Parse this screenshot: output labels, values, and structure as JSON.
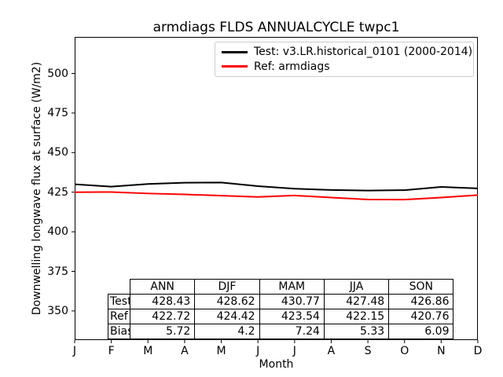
{
  "chart_data": {
    "type": "line",
    "title": "armdiags FLDS ANNUALCYCLE twpc1",
    "xlabel": "Month",
    "ylabel": "Downwelling longwave flux at surface (W/m2)",
    "categories": [
      "J",
      "F",
      "M",
      "A",
      "M",
      "J",
      "J",
      "A",
      "S",
      "O",
      "N",
      "D"
    ],
    "y_ticks": [
      350,
      375,
      400,
      425,
      450,
      475,
      500
    ],
    "ylim": [
      331.5,
      523.1
    ],
    "grid": false,
    "legend_position": "upper right",
    "series": [
      {
        "name": "Test: v3.LR.historical_0101 (2000-2014)",
        "color": "#000000",
        "values": [
          430.0,
          428.5,
          430.2,
          431.0,
          431.1,
          428.8,
          427.2,
          426.4,
          426.0,
          426.3,
          428.3,
          427.4
        ]
      },
      {
        "name": "Ref: armdiags",
        "color": "#ff0000",
        "values": [
          425.0,
          425.1,
          424.2,
          423.6,
          422.8,
          422.0,
          422.9,
          421.6,
          420.4,
          420.3,
          421.6,
          423.2
        ]
      }
    ],
    "stats_table": {
      "columns": [
        "ANN",
        "DJF",
        "MAM",
        "JJA",
        "SON"
      ],
      "rows": [
        {
          "label": "Test",
          "values": [
            "428.43",
            "428.62",
            "430.77",
            "427.48",
            "426.86"
          ]
        },
        {
          "label": "Ref",
          "values": [
            "422.72",
            "424.42",
            "423.54",
            "422.15",
            "420.76"
          ]
        },
        {
          "label": "Bias",
          "values": [
            "5.72",
            "4.2",
            "7.24",
            "5.33",
            "6.09"
          ]
        }
      ]
    }
  }
}
